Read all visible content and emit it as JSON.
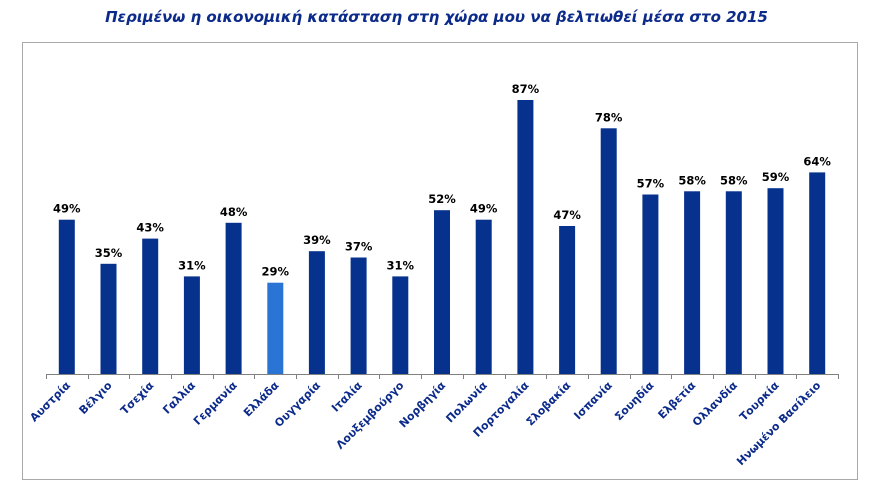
{
  "chart_data": {
    "type": "bar",
    "title": "Περιμένω η οικονομική κατάσταση στη χώρα μου να βελτιωθεί μέσα στο 2015",
    "xlabel": "",
    "ylabel": "",
    "ylim": [
      0,
      100
    ],
    "grid": false,
    "legend": "none",
    "categories": [
      "Αυστρία",
      "Βέλγιο",
      "Τσεχία",
      "Γαλλία",
      "Γερμανία",
      "Ελλάδα",
      "Ουγγαρία",
      "Ιταλία",
      "Λουξεμβούργο",
      "Νορβηγία",
      "Πολωνία",
      "Πορτογαλία",
      "Σλοβακία",
      "Ισπανία",
      "Σουηδία",
      "Ελβετία",
      "Ολλανδία",
      "Τουρκία",
      "Ηνωμένο Βασίλειο"
    ],
    "values": [
      49,
      35,
      43,
      31,
      48,
      29,
      39,
      37,
      31,
      52,
      49,
      87,
      47,
      78,
      57,
      58,
      58,
      59,
      64
    ],
    "value_labels": [
      "49%",
      "35%",
      "43%",
      "31%",
      "48%",
      "29%",
      "39%",
      "37%",
      "31%",
      "52%",
      "49%",
      "87%",
      "47%",
      "78%",
      "57%",
      "58%",
      "58%",
      "59%",
      "64%"
    ],
    "highlight_index": 5,
    "colors": {
      "bar": "#06318d",
      "highlight": "#2a74d6",
      "label": "#0b2a8a",
      "value": "#000000"
    }
  }
}
